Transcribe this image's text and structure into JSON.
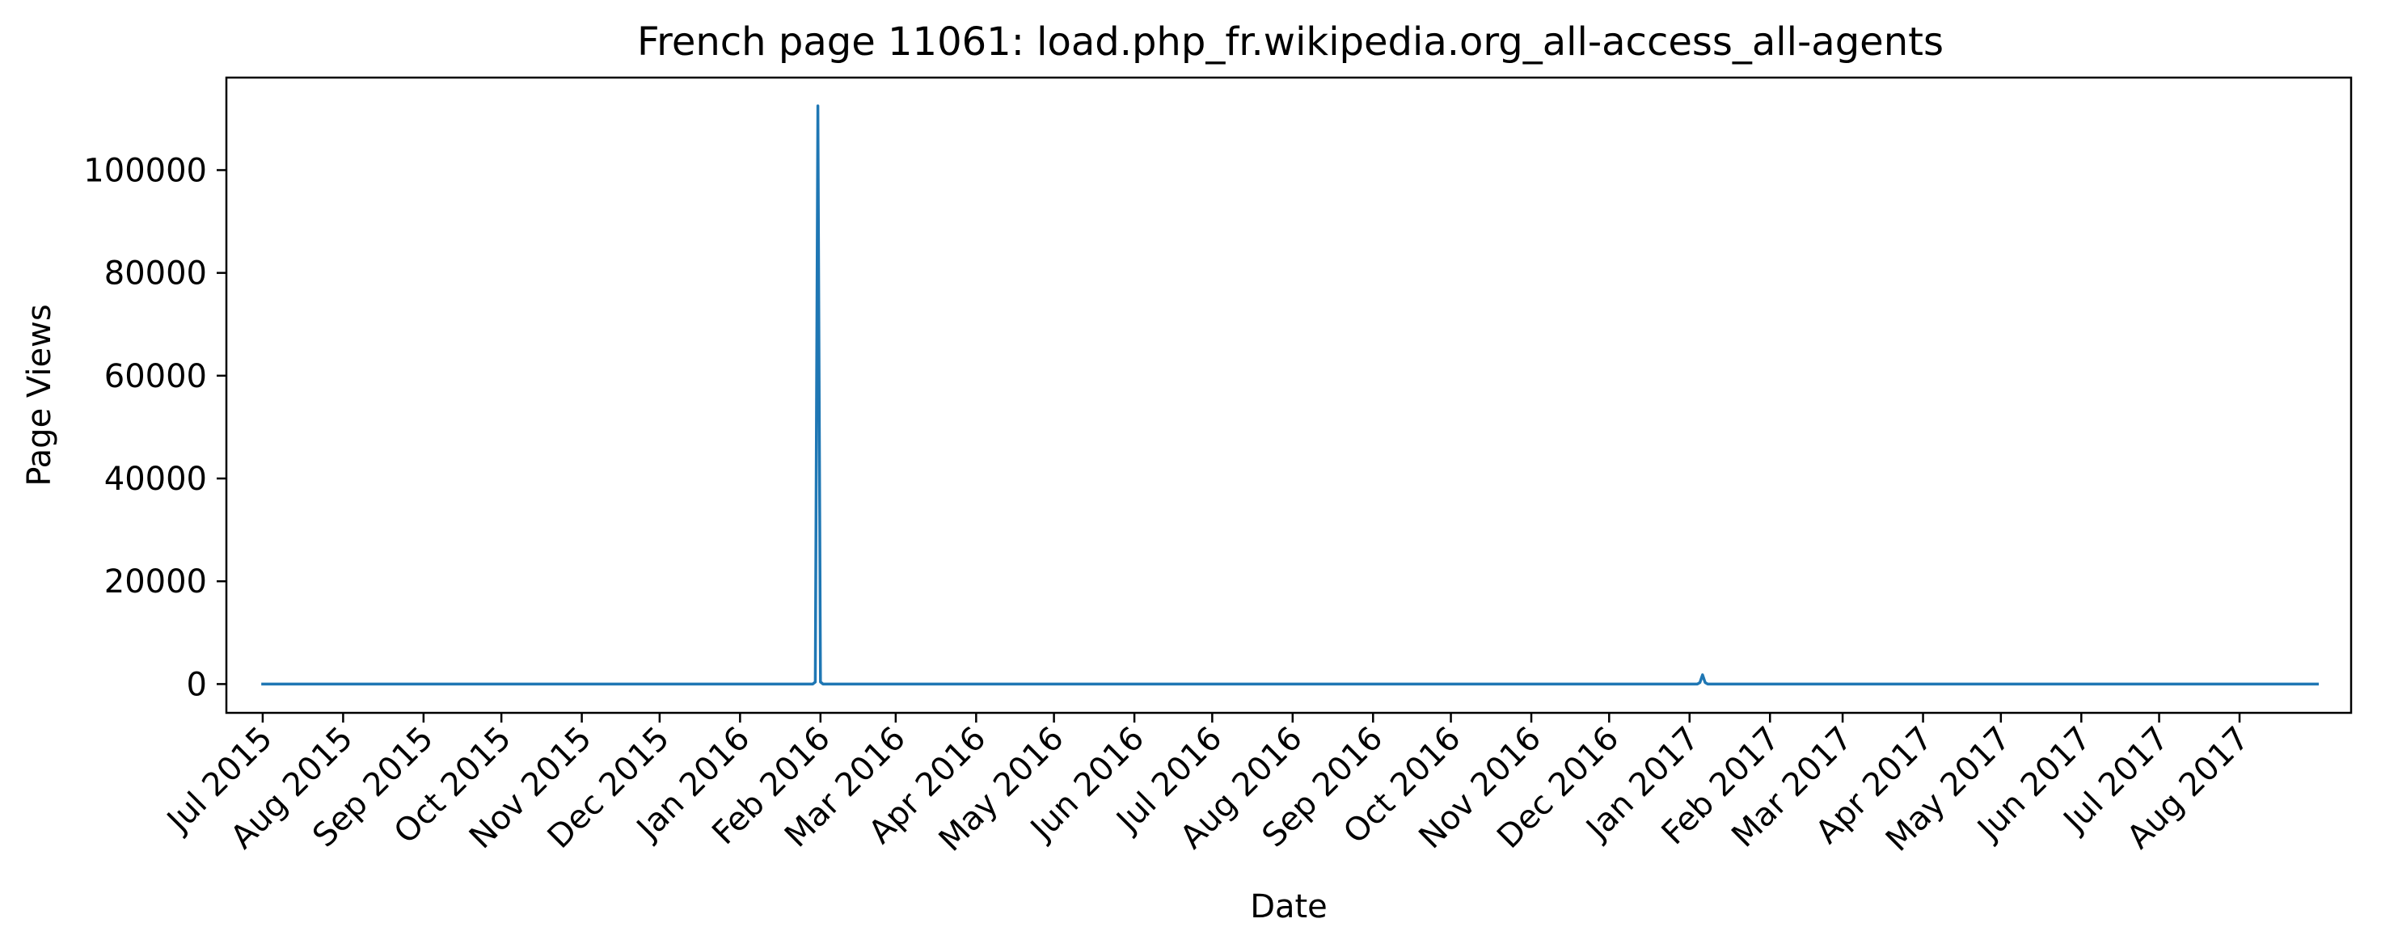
{
  "chart_data": {
    "type": "line",
    "title": "French page 11061: load.php_fr.wikipedia.org_all-access_all-agents",
    "xlabel": "Date",
    "ylabel": "Page Views",
    "x_range": [
      "2015-06-17",
      "2017-09-13"
    ],
    "ylim": [
      -5600,
      118000
    ],
    "grid": false,
    "legend": "none",
    "x_ticks": [
      {
        "date": "2015-07-01",
        "label": "Jul 2015"
      },
      {
        "date": "2015-08-01",
        "label": "Aug 2015"
      },
      {
        "date": "2015-09-01",
        "label": "Sep 2015"
      },
      {
        "date": "2015-10-01",
        "label": "Oct 2015"
      },
      {
        "date": "2015-11-01",
        "label": "Nov 2015"
      },
      {
        "date": "2015-12-01",
        "label": "Dec 2015"
      },
      {
        "date": "2016-01-01",
        "label": "Jan 2016"
      },
      {
        "date": "2016-02-01",
        "label": "Feb 2016"
      },
      {
        "date": "2016-03-01",
        "label": "Mar 2016"
      },
      {
        "date": "2016-04-01",
        "label": "Apr 2016"
      },
      {
        "date": "2016-05-01",
        "label": "May 2016"
      },
      {
        "date": "2016-06-01",
        "label": "Jun 2016"
      },
      {
        "date": "2016-07-01",
        "label": "Jul 2016"
      },
      {
        "date": "2016-08-01",
        "label": "Aug 2016"
      },
      {
        "date": "2016-09-01",
        "label": "Sep 2016"
      },
      {
        "date": "2016-10-01",
        "label": "Oct 2016"
      },
      {
        "date": "2016-11-01",
        "label": "Nov 2016"
      },
      {
        "date": "2016-12-01",
        "label": "Dec 2016"
      },
      {
        "date": "2017-01-01",
        "label": "Jan 2017"
      },
      {
        "date": "2017-02-01",
        "label": "Feb 2017"
      },
      {
        "date": "2017-03-01",
        "label": "Mar 2017"
      },
      {
        "date": "2017-04-01",
        "label": "Apr 2017"
      },
      {
        "date": "2017-05-01",
        "label": "May 2017"
      },
      {
        "date": "2017-06-01",
        "label": "Jun 2017"
      },
      {
        "date": "2017-07-01",
        "label": "Jul 2017"
      },
      {
        "date": "2017-08-01",
        "label": "Aug 2017"
      }
    ],
    "y_ticks": [
      {
        "value": 0,
        "label": "0"
      },
      {
        "value": 20000,
        "label": "20000"
      },
      {
        "value": 40000,
        "label": "40000"
      },
      {
        "value": 60000,
        "label": "60000"
      },
      {
        "value": 80000,
        "label": "80000"
      },
      {
        "value": 100000,
        "label": "100000"
      }
    ],
    "series": [
      {
        "color": "#1f77b4",
        "points": [
          {
            "x": "2015-07-01",
            "y": 0
          },
          {
            "x": "2016-01-29",
            "y": 0
          },
          {
            "x": "2016-01-30",
            "y": 400
          },
          {
            "x": "2016-01-31",
            "y": 112500
          },
          {
            "x": "2016-02-01",
            "y": 400
          },
          {
            "x": "2016-02-02",
            "y": 0
          },
          {
            "x": "2017-01-04",
            "y": 0
          },
          {
            "x": "2017-01-05",
            "y": 300
          },
          {
            "x": "2017-01-06",
            "y": 1800
          },
          {
            "x": "2017-01-07",
            "y": 300
          },
          {
            "x": "2017-01-08",
            "y": 0
          },
          {
            "x": "2017-08-01",
            "y": 0
          },
          {
            "x": "2017-08-31",
            "y": 0
          }
        ]
      }
    ]
  }
}
